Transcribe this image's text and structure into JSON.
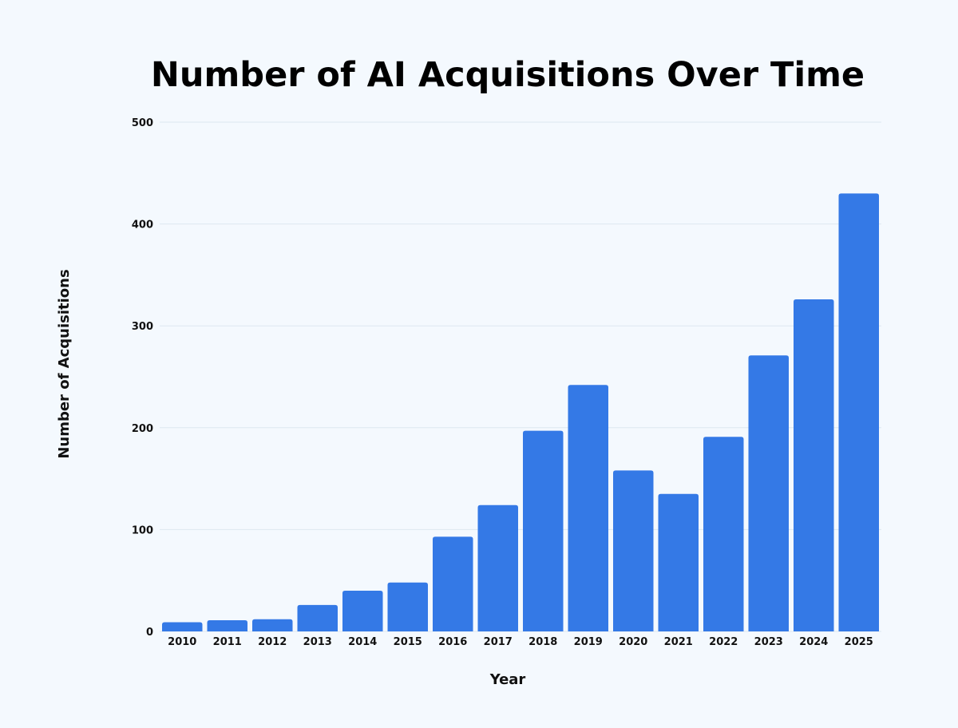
{
  "chart_data": {
    "type": "bar",
    "title": "Number of AI Acquisitions Over Time",
    "xlabel": "Year",
    "ylabel": "Number of Acquisitions",
    "categories": [
      "2010",
      "2011",
      "2012",
      "2013",
      "2014",
      "2015",
      "2016",
      "2017",
      "2018",
      "2019",
      "2020",
      "2021",
      "2022",
      "2023",
      "2024",
      "2025"
    ],
    "values": [
      9,
      11,
      12,
      26,
      40,
      48,
      93,
      124,
      197,
      242,
      158,
      135,
      191,
      271,
      326,
      430
    ],
    "ylim": [
      0,
      500
    ],
    "yticks": [
      "0",
      "100",
      "200",
      "300",
      "400",
      "500"
    ],
    "grid": true,
    "bar_color": "#3479e6",
    "grid_color": "#dde7f0"
  }
}
